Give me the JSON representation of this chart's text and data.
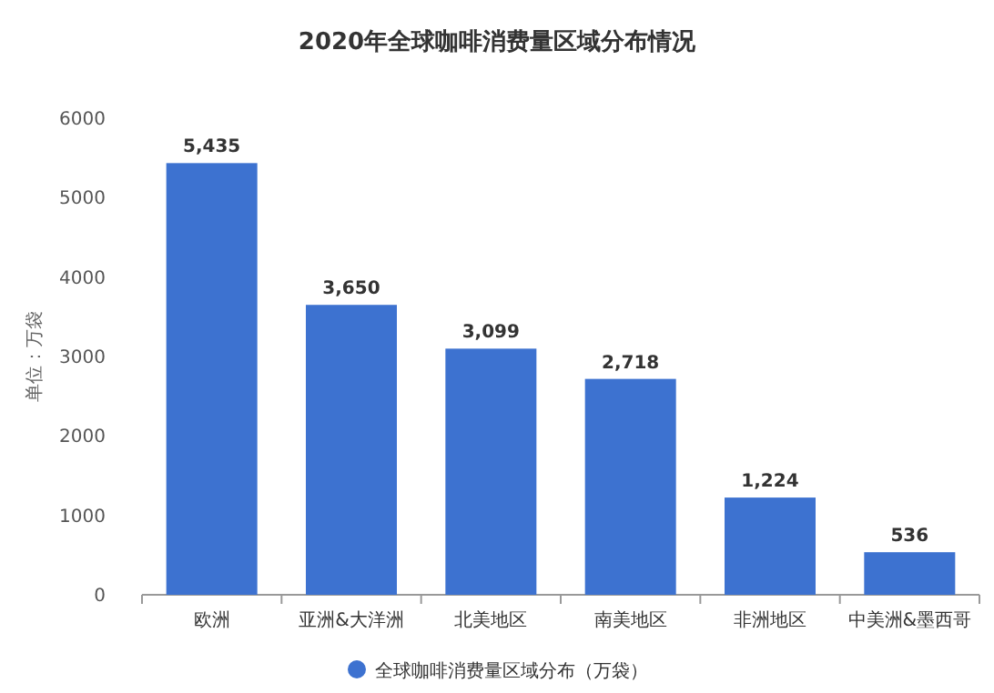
{
  "chart_data": {
    "type": "bar",
    "title": "2020年全球咖啡消费量区域分布情况",
    "ylabel": "单位：万袋",
    "categories": [
      "欧洲",
      "亚洲&大洋洲",
      "北美地区",
      "南美地区",
      "非洲地区",
      "中美洲&墨西哥"
    ],
    "series": [
      {
        "name": "全球咖啡消费量区域分布（万袋）",
        "color": "#3d72d0",
        "values": [
          5435,
          3650,
          3099,
          2718,
          1224,
          536
        ],
        "value_labels": [
          "5,435",
          "3,650",
          "3,099",
          "2,718",
          "1,224",
          "536"
        ]
      }
    ],
    "ylim": [
      0,
      6000
    ],
    "yticks": [
      0,
      1000,
      2000,
      3000,
      4000,
      5000,
      6000
    ],
    "legend": "bottom"
  }
}
